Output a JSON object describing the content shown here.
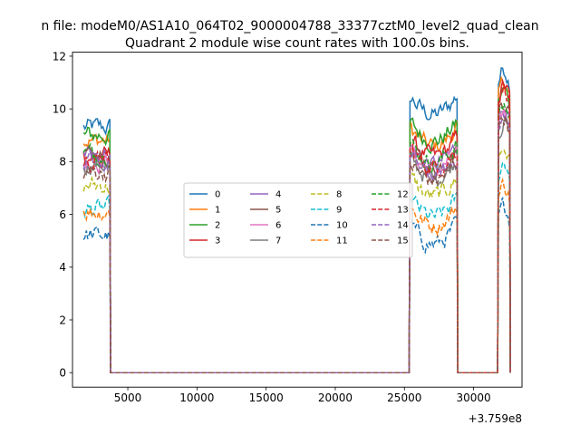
{
  "chart_data": {
    "type": "line",
    "suptitle": "n file: modeM0/AS1A10_064T02_9000004788_33377cztM0_level2_quad_clean",
    "title": "Quadrant 2 module wise count rates with 100.0s bins.",
    "xlabel": "",
    "ylabel": "",
    "offset_text": "+3.759e8",
    "xlim": [
      1000,
      33500
    ],
    "ylim": [
      -0.55,
      12.15
    ],
    "x_ticks": [
      5000,
      10000,
      15000,
      20000,
      25000,
      30000
    ],
    "x_tick_labels": [
      "5000",
      "10000",
      "15000",
      "20000",
      "25000",
      "30000"
    ],
    "y_ticks": [
      0,
      2,
      4,
      6,
      8,
      10,
      12
    ],
    "y_tick_labels": [
      "0",
      "2",
      "4",
      "6",
      "8",
      "10",
      "12"
    ],
    "grid": false,
    "legend": {
      "placement": "center",
      "columns": 4
    },
    "segments": [
      {
        "start": 1800,
        "end": 3700
      },
      {
        "start": 25400,
        "end": 28800
      },
      {
        "start": 31800,
        "end": 32600
      }
    ],
    "gap_value": 0,
    "series": [
      {
        "name": "0",
        "color": "#1f77b4",
        "dash": "solid",
        "levels": [
          9.3,
          10.5,
          11.0
        ]
      },
      {
        "name": "1",
        "color": "#ff7f0e",
        "dash": "solid",
        "levels": [
          8.8,
          9.3,
          10.5
        ]
      },
      {
        "name": "2",
        "color": "#2ca02c",
        "dash": "solid",
        "levels": [
          9.0,
          9.5,
          10.2
        ]
      },
      {
        "name": "3",
        "color": "#d62728",
        "dash": "solid",
        "levels": [
          8.2,
          8.9,
          10.4
        ]
      },
      {
        "name": "4",
        "color": "#9467bd",
        "dash": "solid",
        "levels": [
          8.3,
          8.6,
          9.5
        ]
      },
      {
        "name": "5",
        "color": "#8c564b",
        "dash": "solid",
        "levels": [
          8.1,
          8.5,
          9.8
        ]
      },
      {
        "name": "6",
        "color": "#e377c2",
        "dash": "solid",
        "levels": [
          8.0,
          8.4,
          9.3
        ]
      },
      {
        "name": "7",
        "color": "#7f7f7f",
        "dash": "solid",
        "levels": [
          7.9,
          8.1,
          9.0
        ]
      },
      {
        "name": "8",
        "color": "#bcbd22",
        "dash": "dashed",
        "levels": [
          7.1,
          7.4,
          8.0
        ]
      },
      {
        "name": "9",
        "color": "#17becf",
        "dash": "dashed",
        "levels": [
          6.2,
          6.6,
          7.5
        ]
      },
      {
        "name": "10",
        "color": "#1f77b4",
        "dash": "dashed",
        "levels": [
          5.2,
          5.6,
          5.8
        ]
      },
      {
        "name": "11",
        "color": "#ff7f0e",
        "dash": "dashed",
        "levels": [
          6.1,
          6.3,
          6.6
        ]
      },
      {
        "name": "12",
        "color": "#2ca02c",
        "dash": "dashed",
        "levels": [
          8.3,
          8.7,
          9.6
        ]
      },
      {
        "name": "13",
        "color": "#d62728",
        "dash": "dashed",
        "levels": [
          8.0,
          8.5,
          10.3
        ]
      },
      {
        "name": "14",
        "color": "#9467bd",
        "dash": "dashed",
        "levels": [
          7.9,
          8.2,
          9.1
        ]
      },
      {
        "name": "15",
        "color": "#8c564b",
        "dash": "dashed",
        "levels": [
          7.6,
          8.0,
          9.2
        ]
      }
    ]
  }
}
